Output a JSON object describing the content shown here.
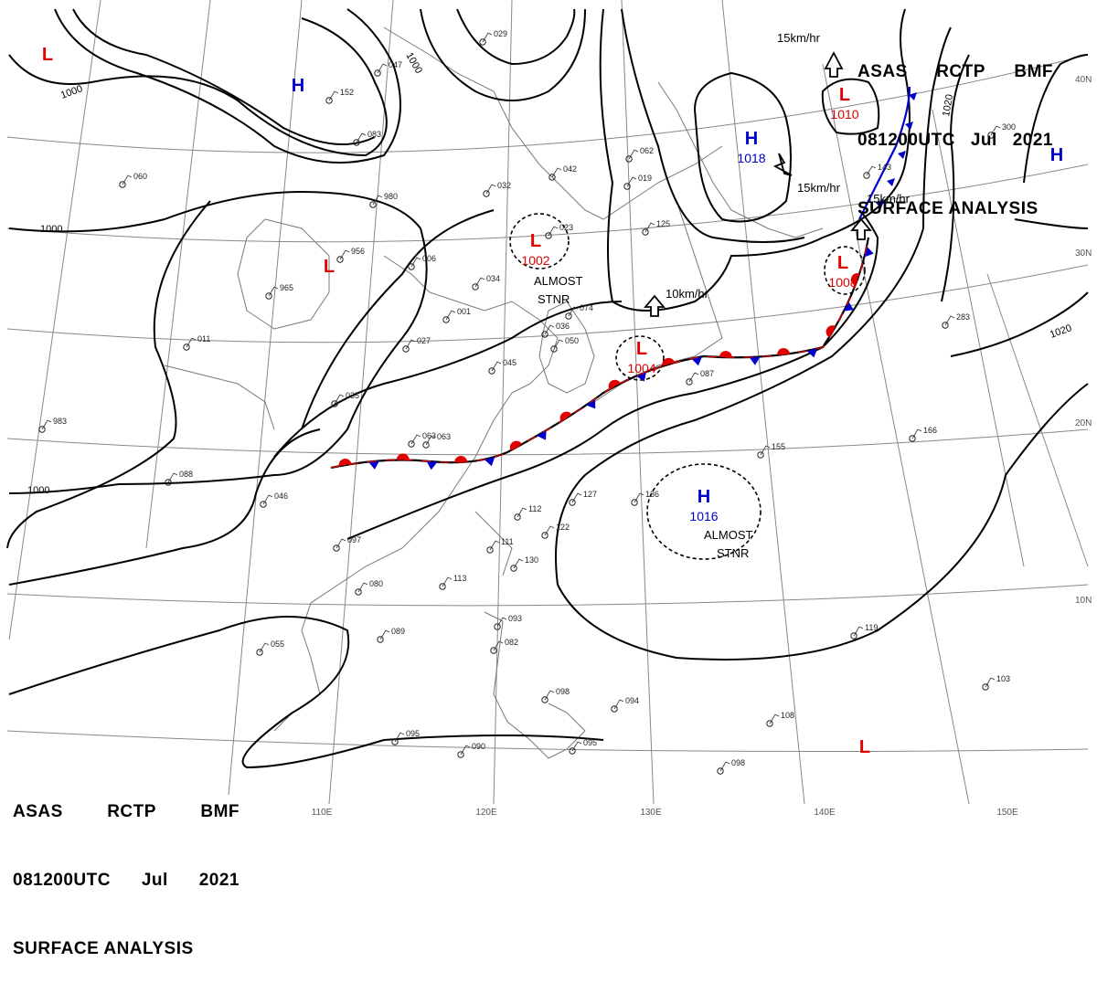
{
  "header": {
    "line1": [
      "ASAS",
      "RCTP",
      "BMF"
    ],
    "line2": [
      "081200UTC",
      "Jul",
      "2021"
    ],
    "line3": "SURFACE ANALYSIS"
  },
  "colors": {
    "low": "#e00000",
    "high": "#0000cc",
    "warm_front": "#e00000",
    "cold_front": "#0000cc",
    "isobar": "#000000",
    "grid": "#888888"
  },
  "longitude_labels": [
    "110E",
    "120E",
    "130E",
    "140E",
    "150E"
  ],
  "latitude_labels": [
    "40N",
    "30N",
    "20N",
    "10N"
  ],
  "isobar_labels": [
    "1000",
    "1000",
    "1000",
    "1000",
    "1020",
    "1020"
  ],
  "pressure_systems": [
    {
      "type": "L",
      "value": ""
    },
    {
      "type": "H",
      "value": ""
    },
    {
      "type": "L",
      "value": ""
    },
    {
      "type": "L",
      "value": "1002"
    },
    {
      "type": "L",
      "value": "1004"
    },
    {
      "type": "H",
      "value": "1018"
    },
    {
      "type": "L",
      "value": "1010"
    },
    {
      "type": "L",
      "value": "1008"
    },
    {
      "type": "H",
      "value": ""
    },
    {
      "type": "H",
      "value": "1016"
    },
    {
      "type": "L",
      "value": ""
    }
  ],
  "motion_labels": [
    "15km/hr",
    "15km/hr",
    "15km/hr",
    "10km/hr"
  ],
  "annotations": [
    "ALMOST",
    "STNR",
    "ALMOST",
    "STNR"
  ],
  "station_values": [
    "029",
    "047",
    "063",
    "060",
    "006",
    "034",
    "001",
    "027",
    "035",
    "983",
    "088",
    "046",
    "097",
    "080",
    "055",
    "089",
    "113",
    "093",
    "082",
    "098",
    "094",
    "095",
    "090",
    "095",
    "098",
    "108",
    "103",
    "119",
    "166",
    "155",
    "136",
    "127",
    "112",
    "130",
    "111",
    "122",
    "042",
    "032",
    "023",
    "125",
    "062",
    "019",
    "143",
    "300",
    "283",
    "152",
    "083",
    "980",
    "956",
    "965",
    "011",
    "045",
    "050",
    "036",
    "074",
    "087",
    "063"
  ]
}
